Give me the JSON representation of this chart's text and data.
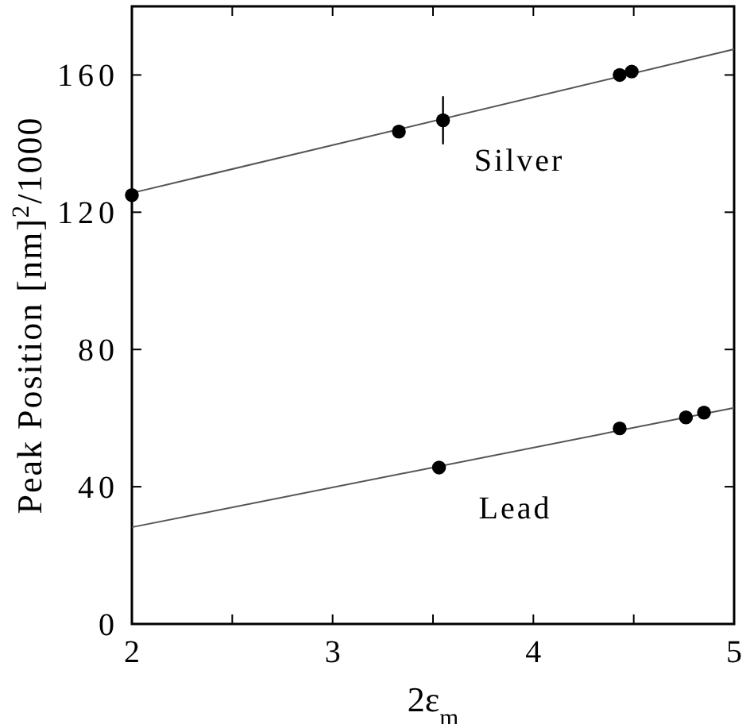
{
  "chart_data": {
    "type": "scatter",
    "xlabel": "2ε$_{m}$",
    "ylabel": "Peak Position [nm]$^{2}$/1000",
    "xlim": [
      2,
      5
    ],
    "ylim": [
      0,
      180
    ],
    "xticks": [
      2,
      {
        "value": 2.5,
        "label": null
      },
      3,
      {
        "value": 3.5,
        "label": null
      },
      4,
      {
        "value": 4.5,
        "label": null
      },
      5
    ],
    "yticks": [
      0,
      40,
      80,
      120,
      160
    ],
    "marker": "circle",
    "grid": false,
    "series": [
      {
        "name": "Silver",
        "color": "#000000",
        "x": [
          2.0,
          3.33,
          3.55,
          4.43,
          4.49
        ],
        "values": [
          125,
          143.5,
          146.8,
          160,
          161
        ],
        "errors": [
          null,
          null,
          7,
          null,
          null
        ]
      },
      {
        "type": "line",
        "color": "#555555",
        "x": [
          2,
          5
        ],
        "values": [
          125.6,
          167.5
        ],
        "marker": "none"
      },
      {
        "name": "Lead",
        "color": "#000000",
        "x": [
          3.53,
          4.43,
          4.76,
          4.85
        ],
        "values": [
          45.6,
          57,
          60.2,
          61.6
        ]
      },
      {
        "type": "line",
        "color": "#555555",
        "x": [
          2,
          5
        ],
        "values": [
          28.2,
          63
        ],
        "marker": "none"
      }
    ]
  }
}
